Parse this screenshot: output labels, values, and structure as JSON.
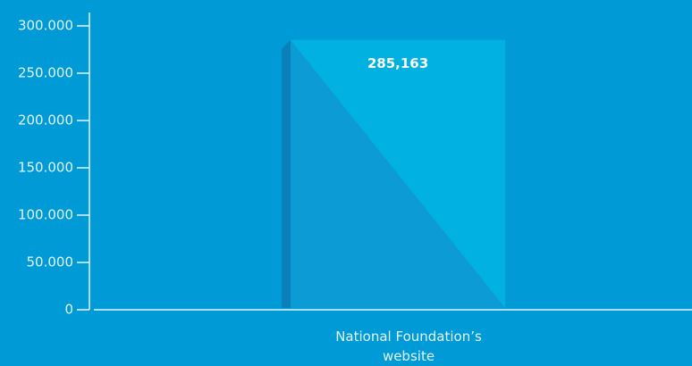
{
  "chart_data": {
    "type": "bar",
    "categories": [
      "National Foundation’s website"
    ],
    "values": [
      285163
    ],
    "value_labels": [
      "285,163"
    ],
    "color": "#00b1e2",
    "ylim": [
      0,
      300000
    ],
    "yticks": [
      0,
      {
        "value": 50000,
        "label": "50.000"
      },
      {
        "value": 100000,
        "label": "100.000"
      },
      {
        "value": 150000,
        "label": "150.000"
      },
      {
        "value": 200000,
        "label": "200.000"
      },
      {
        "value": 250000,
        "label": "250.000"
      },
      {
        "value": 300000,
        "label": "300.000"
      }
    ]
  }
}
